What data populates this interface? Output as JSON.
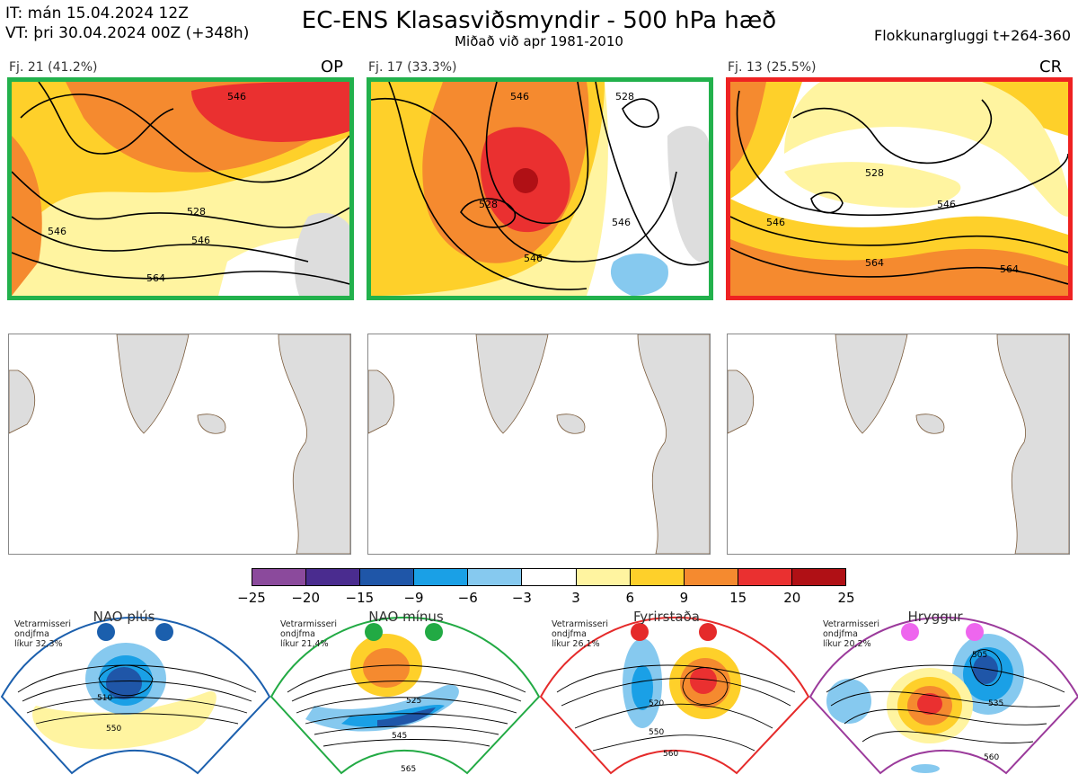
{
  "header": {
    "it_line": "IT: mán 15.04.2024 12Z",
    "vt_line": "VT: þri 30.04.2024 00Z  (+348h)",
    "title": "EC-ENS Klasasviðsmyndir - 500 hPa hæð",
    "subtitle": "Miðað við apr 1981-2010",
    "window": "Flokkunargluggi t+264-360"
  },
  "clusters": [
    {
      "label": "Fj. 21 (41.2%)",
      "tag": "OP",
      "border_color": "#22b14c",
      "contours": [
        "546",
        "528",
        "546",
        "564",
        "546"
      ]
    },
    {
      "label": "Fj. 17 (33.3%)",
      "tag": "",
      "border_color": "#22b14c",
      "contours": [
        "528",
        "546",
        "546",
        "528",
        "546"
      ]
    },
    {
      "label": "Fj. 13 (25.5%)",
      "tag": "CR",
      "border_color": "#ee2222",
      "contours": [
        "528",
        "546",
        "564",
        "564",
        "546"
      ]
    }
  ],
  "colorbar": {
    "ticks": [
      "−25",
      "−20",
      "−15",
      "−9",
      "−6",
      "−3",
      "3",
      "6",
      "9",
      "15",
      "20",
      "25"
    ],
    "colors": [
      "#8b4a9c",
      "#4a2c8f",
      "#1f56a8",
      "#1aa0e6",
      "#86c9ef",
      "#ffffff",
      "#fff4a0",
      "#fed02a",
      "#f58a2f",
      "#ea3030",
      "#b01015"
    ]
  },
  "regimes": [
    {
      "name": "NAO plús",
      "note": [
        "Vetrarmisseri",
        "ondjfma",
        "líkur 32,3%"
      ],
      "color": "#1b5fad",
      "contours": [
        "510",
        "550"
      ]
    },
    {
      "name": "NAO mínus",
      "note": [
        "Vetrarmisseri",
        "ondjfma",
        "líkur 21,4%"
      ],
      "color": "#22aa44",
      "contours": [
        "525",
        "545",
        "565"
      ]
    },
    {
      "name": "Fyrirstaða",
      "note": [
        "Vetrarmisseri",
        "ondjfma",
        "líkur 26,1%"
      ],
      "color": "#e52a2a",
      "contours": [
        "520",
        "550",
        "560"
      ]
    },
    {
      "name": "Hryggur",
      "note": [
        "Vetrarmisseri",
        "ondjfma",
        "líkur 20,2%"
      ],
      "color": "#9b3a9b",
      "contours": [
        "505",
        "535",
        "560"
      ]
    }
  ]
}
